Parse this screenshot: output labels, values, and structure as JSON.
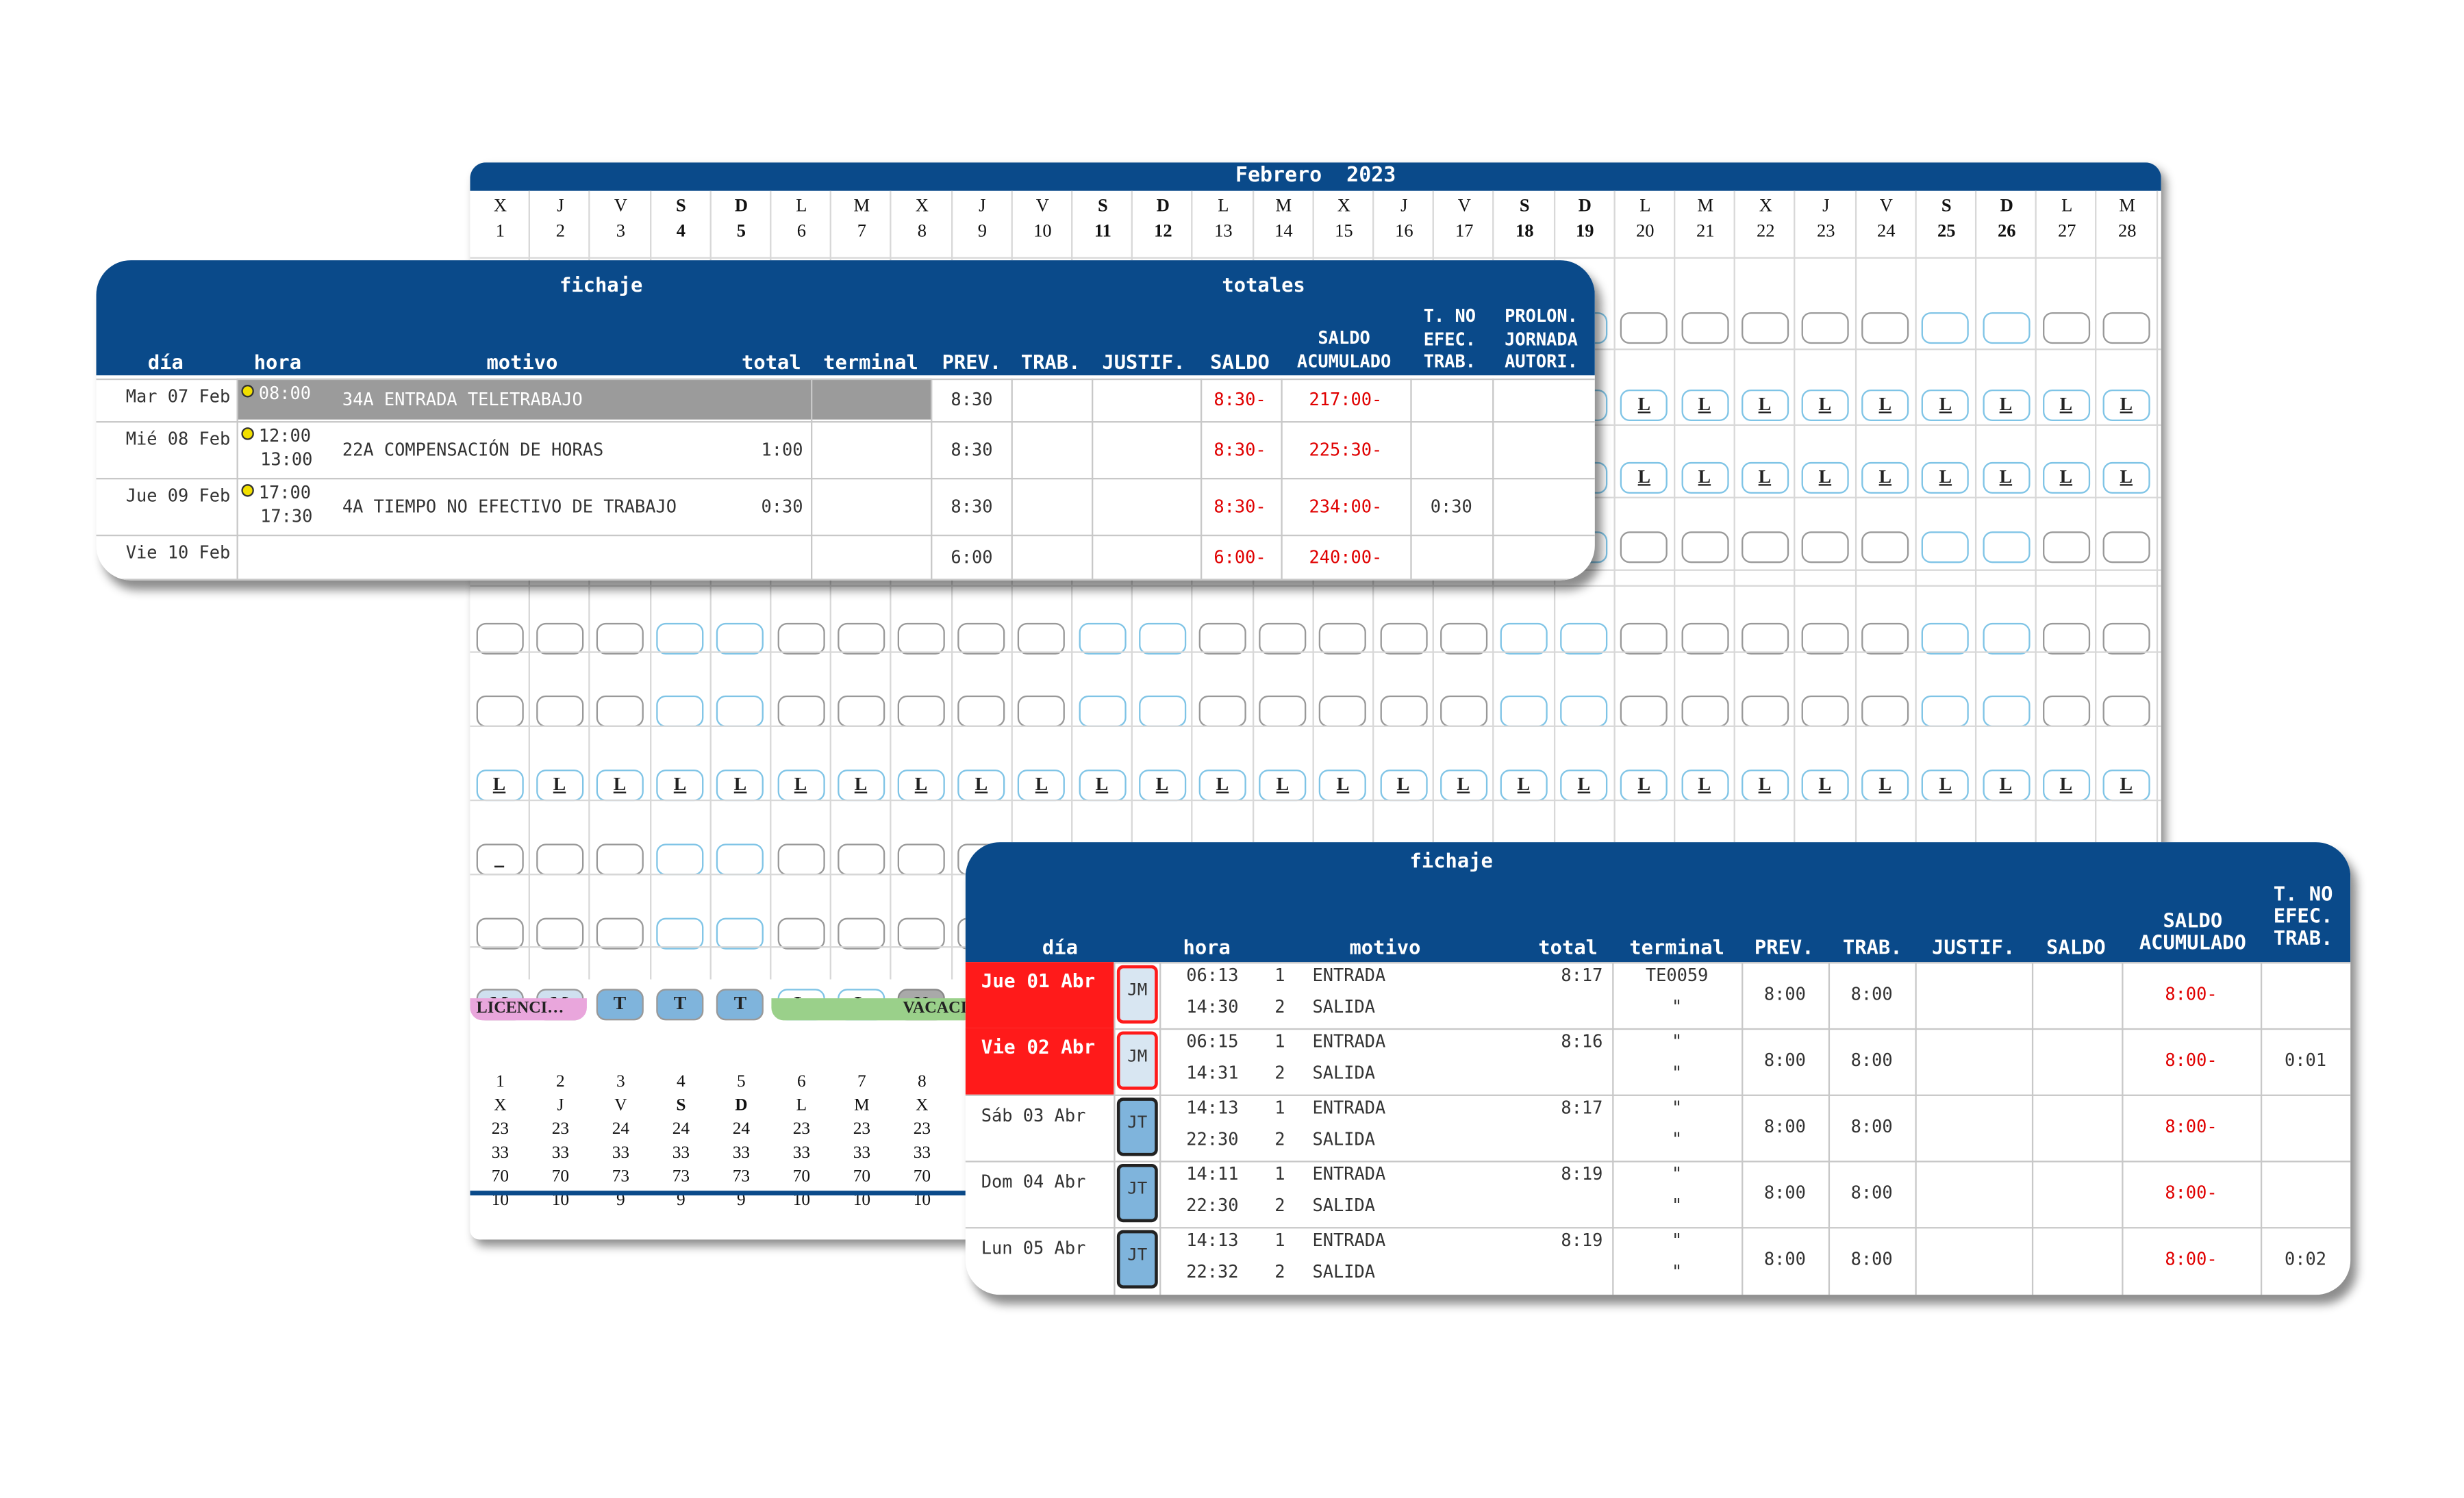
{
  "calendar": {
    "title": "Febrero  2023",
    "days": [
      {
        "letter": "X",
        "num": "1",
        "we": false
      },
      {
        "letter": "J",
        "num": "2",
        "we": false
      },
      {
        "letter": "V",
        "num": "3",
        "we": false
      },
      {
        "letter": "S",
        "num": "4",
        "we": true
      },
      {
        "letter": "D",
        "num": "5",
        "we": true
      },
      {
        "letter": "L",
        "num": "6",
        "we": false
      },
      {
        "letter": "M",
        "num": "7",
        "we": false
      },
      {
        "letter": "X",
        "num": "8",
        "we": false
      },
      {
        "letter": "J",
        "num": "9",
        "we": false
      },
      {
        "letter": "V",
        "num": "10",
        "we": false
      },
      {
        "letter": "S",
        "num": "11",
        "we": true
      },
      {
        "letter": "D",
        "num": "12",
        "we": true
      },
      {
        "letter": "L",
        "num": "13",
        "we": false
      },
      {
        "letter": "M",
        "num": "14",
        "we": false
      },
      {
        "letter": "X",
        "num": "15",
        "we": false
      },
      {
        "letter": "J",
        "num": "16",
        "we": false
      },
      {
        "letter": "V",
        "num": "17",
        "we": false
      },
      {
        "letter": "S",
        "num": "18",
        "we": true
      },
      {
        "letter": "D",
        "num": "19",
        "we": true
      },
      {
        "letter": "L",
        "num": "20",
        "we": false
      },
      {
        "letter": "M",
        "num": "21",
        "we": false
      },
      {
        "letter": "X",
        "num": "22",
        "we": false
      },
      {
        "letter": "J",
        "num": "23",
        "we": false
      },
      {
        "letter": "V",
        "num": "24",
        "we": false
      },
      {
        "letter": "S",
        "num": "25",
        "we": true
      },
      {
        "letter": "D",
        "num": "26",
        "we": true
      },
      {
        "letter": "L",
        "num": "27",
        "we": false
      },
      {
        "letter": "M",
        "num": "28",
        "we": false
      }
    ],
    "l_label": "L",
    "underscore_label": "_",
    "shift_row": [
      "M",
      "M",
      "T",
      "T",
      "T",
      "L",
      "L",
      "N"
    ],
    "absences": [
      {
        "label": "LICENCI…",
        "color": "#e9a6dc"
      },
      {
        "label": "VACACI",
        "color": "#9ad08a"
      }
    ],
    "stats": [
      {
        "num": "1",
        "letter": "X",
        "v": [
          "23",
          "33",
          "70",
          "10"
        ]
      },
      {
        "num": "2",
        "letter": "J",
        "v": [
          "23",
          "33",
          "70",
          "10"
        ]
      },
      {
        "num": "3",
        "letter": "V",
        "v": [
          "24",
          "33",
          "73",
          "9"
        ]
      },
      {
        "num": "4",
        "letter": "S",
        "v": [
          "24",
          "33",
          "73",
          "9"
        ]
      },
      {
        "num": "5",
        "letter": "D",
        "v": [
          "24",
          "33",
          "73",
          "9"
        ]
      },
      {
        "num": "6",
        "letter": "L",
        "v": [
          "23",
          "33",
          "70",
          "10"
        ]
      },
      {
        "num": "7",
        "letter": "M",
        "v": [
          "23",
          "33",
          "70",
          "10"
        ]
      },
      {
        "num": "8",
        "letter": "X",
        "v": [
          "23",
          "33",
          "70",
          "10"
        ]
      }
    ]
  },
  "panel1": {
    "header": {
      "fichaje": "fichaje",
      "totales": "totales",
      "dia": "día",
      "hora": "hora",
      "motivo": "motivo",
      "total": "total",
      "terminal": "terminal",
      "prev": "PREV.",
      "trab": "TRAB.",
      "justif": "JUSTIF.",
      "saldo": "SALDO",
      "saldo_acum": "SALDO ACUMULADO",
      "tno": "T. NO EFEC. TRAB.",
      "prolon": "PROLON. JORNADA AUTORI."
    },
    "rows": [
      {
        "dia": "Mar 07 Feb",
        "horas": [
          "08:00"
        ],
        "motivo": "34A ENTRADA TELETRABAJO",
        "total": "",
        "prev": "8:30",
        "saldo": "8:30-",
        "acum": "217:00-",
        "tno": ""
      },
      {
        "dia": "Mié 08 Feb",
        "horas": [
          "12:00",
          "13:00"
        ],
        "motivo": "22A COMPENSACIÓN DE HORAS",
        "total": "1:00",
        "prev": "8:30",
        "saldo": "8:30-",
        "acum": "225:30-",
        "tno": ""
      },
      {
        "dia": "Jue 09 Feb",
        "horas": [
          "17:00",
          "17:30"
        ],
        "motivo": "4A TIEMPO NO EFECTIVO DE TRABAJO",
        "total": "0:30",
        "prev": "8:30",
        "saldo": "8:30-",
        "acum": "234:00-",
        "tno": "0:30"
      },
      {
        "dia": "Vie 10 Feb",
        "horas": [],
        "motivo": "",
        "total": "",
        "prev": "6:00",
        "saldo": "6:00-",
        "acum": "240:00-",
        "tno": ""
      }
    ]
  },
  "panel2": {
    "header": {
      "fichaje": "fichaje",
      "dia": "día",
      "hora": "hora",
      "motivo": "motivo",
      "total": "total",
      "terminal": "terminal",
      "prev": "PREV.",
      "trab": "TRAB.",
      "justif": "JUSTIF.",
      "saldo": "SALDO",
      "saldo_acum": "SALDO ACUMULADO",
      "tno": "T. NO EFEC. TRAB."
    },
    "rows": [
      {
        "dia": "Jue 01 Abr",
        "red": true,
        "badge": "JM",
        "h1": "06:13",
        "n1": "1",
        "m1": "ENTRADA",
        "h2": "14:30",
        "n2": "2",
        "m2": "SALIDA",
        "total": "8:17",
        "t1": "TE0059",
        "t2": "\"",
        "prev": "8:00",
        "trab": "8:00",
        "acum": "8:00-",
        "tno": ""
      },
      {
        "dia": "Vie 02 Abr",
        "red": true,
        "badge": "JM",
        "h1": "06:15",
        "n1": "1",
        "m1": "ENTRADA",
        "h2": "14:31",
        "n2": "2",
        "m2": "SALIDA",
        "total": "8:16",
        "t1": "\"",
        "t2": "\"",
        "prev": "8:00",
        "trab": "8:00",
        "acum": "8:00-",
        "tno": "0:01"
      },
      {
        "dia": "Sáb 03 Abr",
        "red": false,
        "badge": "JT",
        "h1": "14:13",
        "n1": "1",
        "m1": "ENTRADA",
        "h2": "22:30",
        "n2": "2",
        "m2": "SALIDA",
        "total": "8:17",
        "t1": "\"",
        "t2": "\"",
        "prev": "8:00",
        "trab": "8:00",
        "acum": "8:00-",
        "tno": ""
      },
      {
        "dia": "Dom 04 Abr",
        "red": false,
        "badge": "JT",
        "h1": "14:11",
        "n1": "1",
        "m1": "ENTRADA",
        "h2": "22:30",
        "n2": "2",
        "m2": "SALIDA",
        "total": "8:19",
        "t1": "\"",
        "t2": "\"",
        "prev": "8:00",
        "trab": "8:00",
        "acum": "8:00-",
        "tno": ""
      },
      {
        "dia": "Lun 05 Abr",
        "red": false,
        "badge": "JT",
        "h1": "14:13",
        "n1": "1",
        "m1": "ENTRADA",
        "h2": "22:32",
        "n2": "2",
        "m2": "SALIDA",
        "total": "8:19",
        "t1": "\"",
        "t2": "\"",
        "prev": "8:00",
        "trab": "8:00",
        "acum": "8:00-",
        "tno": "0:02"
      }
    ]
  }
}
